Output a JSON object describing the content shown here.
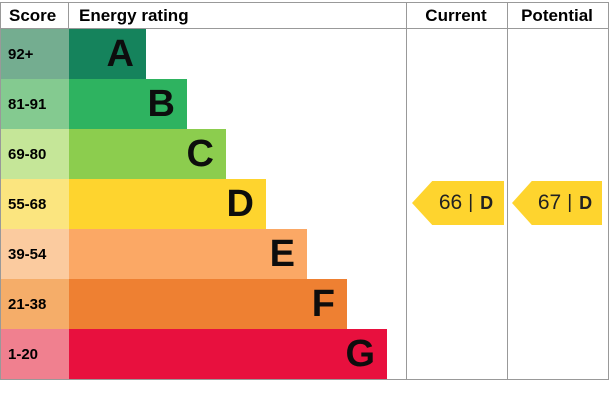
{
  "header": {
    "score": "Score",
    "energy_rating": "Energy rating",
    "current": "Current",
    "potential": "Potential"
  },
  "bands": [
    {
      "label": "A",
      "score": "92+",
      "color": "#15835c",
      "tint": "#74ad90"
    },
    {
      "label": "B",
      "score": "81-91",
      "color": "#2eb360",
      "tint": "#84ca90"
    },
    {
      "label": "C",
      "score": "69-80",
      "color": "#8ccd4e",
      "tint": "#c5e698"
    },
    {
      "label": "D",
      "score": "55-68",
      "color": "#fed42e",
      "tint": "#fbe57f"
    },
    {
      "label": "E",
      "score": "39-54",
      "color": "#fba865",
      "tint": "#fbcb9f"
    },
    {
      "label": "F",
      "score": "21-38",
      "color": "#ee8032",
      "tint": "#f5ad69"
    },
    {
      "label": "G",
      "score": "1-20",
      "color": "#e8103e",
      "tint": "#f0808f"
    }
  ],
  "ratings": {
    "separator": "|",
    "current": {
      "value": "66",
      "letter": "D",
      "arrow_color": "#fed42e"
    },
    "potential": {
      "value": "67",
      "letter": "D",
      "arrow_color": "#fed42e"
    }
  },
  "colors": {
    "border": "#999999"
  },
  "chart_data": {
    "type": "epc_energy_rating",
    "title": "Energy rating",
    "columns": [
      "Score",
      "Energy rating",
      "Current",
      "Potential"
    ],
    "bands": [
      {
        "letter": "A",
        "score_range": "92+",
        "color": "#15835c"
      },
      {
        "letter": "B",
        "score_range": "81-91",
        "color": "#2eb360"
      },
      {
        "letter": "C",
        "score_range": "69-80",
        "color": "#8ccd4e"
      },
      {
        "letter": "D",
        "score_range": "55-68",
        "color": "#fed42e"
      },
      {
        "letter": "E",
        "score_range": "39-54",
        "color": "#fba865"
      },
      {
        "letter": "F",
        "score_range": "21-38",
        "color": "#ee8032"
      },
      {
        "letter": "G",
        "score_range": "1-20",
        "color": "#e8103e"
      }
    ],
    "current": {
      "score": 66,
      "rating": "D"
    },
    "potential": {
      "score": 67,
      "rating": "D"
    }
  }
}
